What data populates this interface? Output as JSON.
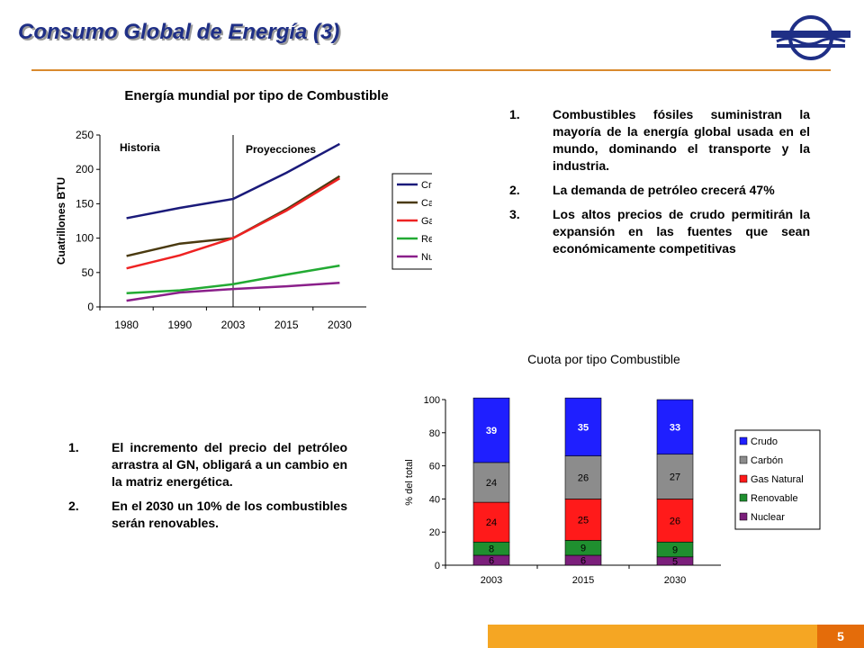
{
  "slide": {
    "title": "Consumo Global de Energía (3)",
    "page_number": "5",
    "logo_icon": "company-logo-icon"
  },
  "bullets_top": [
    {
      "num": "1.",
      "text": "Combustibles fósiles suministran la mayoría de la energía global usada en el mundo, dominando el transporte y la industria."
    },
    {
      "num": "2.",
      "text": "La demanda de petróleo crecerá 47%"
    },
    {
      "num": "3.",
      "text": "Los altos precios de crudo permitirán la expansión en las fuentes que sean económicamente competitivas"
    }
  ],
  "bullets_bottom": [
    {
      "num": "1.",
      "text": "El incremento del precio del petróleo arrastra al GN, obligará a un cambio en la matriz energética."
    },
    {
      "num": "2.",
      "text": "En el 2030 un 10% de los combustibles serán renovables."
    }
  ],
  "chart_data": [
    {
      "type": "line",
      "title": "Energía mundial por tipo de Combustible",
      "ylabel": "Cuatrillones BTU",
      "xlabel": "",
      "categories": [
        "1980",
        "1990",
        "2003",
        "2015",
        "2030"
      ],
      "ylim": [
        0,
        250
      ],
      "yticks": [
        0,
        50,
        100,
        150,
        200,
        250
      ],
      "annotations": [
        "Historia",
        "Proyecciones"
      ],
      "divider_after_category": "2003",
      "legend_position": "right",
      "series": [
        {
          "name": "Crudo",
          "color": "#1a1a7a",
          "values": [
            129,
            144,
            157,
            195,
            237
          ]
        },
        {
          "name": "Carbón",
          "color": "#4a3a10",
          "values": [
            74,
            92,
            100,
            142,
            190
          ]
        },
        {
          "name": "Gas Natural",
          "color": "#ee2222",
          "values": [
            56,
            75,
            100,
            140,
            187
          ]
        },
        {
          "name": "Renovables",
          "color": "#22aa33",
          "values": [
            20,
            24,
            33,
            47,
            60
          ]
        },
        {
          "name": "Nuclear",
          "color": "#8a1f8a",
          "values": [
            9,
            21,
            26,
            30,
            35
          ]
        }
      ]
    },
    {
      "type": "bar",
      "stacked": true,
      "title": "Cuota por tipo Combustible",
      "ylabel": "% del total",
      "categories": [
        "2003",
        "2015",
        "2030"
      ],
      "ylim": [
        0,
        100
      ],
      "yticks": [
        0,
        20,
        40,
        60,
        80,
        100
      ],
      "legend_position": "right",
      "series": [
        {
          "name": "Nuclear",
          "color": "#7b1f7b",
          "values": [
            6,
            6,
            5
          ]
        },
        {
          "name": "Renovable",
          "color": "#1f8f2f",
          "values": [
            8,
            9,
            9
          ]
        },
        {
          "name": "Gas Natural",
          "color": "#ff1a1a",
          "values": [
            24,
            25,
            26
          ]
        },
        {
          "name": "Carbón",
          "color": "#8c8c8c",
          "values": [
            24,
            26,
            27
          ]
        },
        {
          "name": "Crudo",
          "color": "#1f1fff",
          "values": [
            39,
            35,
            33
          ]
        }
      ],
      "legend_order": [
        "Crudo",
        "Carbón",
        "Gas Natural",
        "Renovable",
        "Nuclear"
      ]
    }
  ]
}
